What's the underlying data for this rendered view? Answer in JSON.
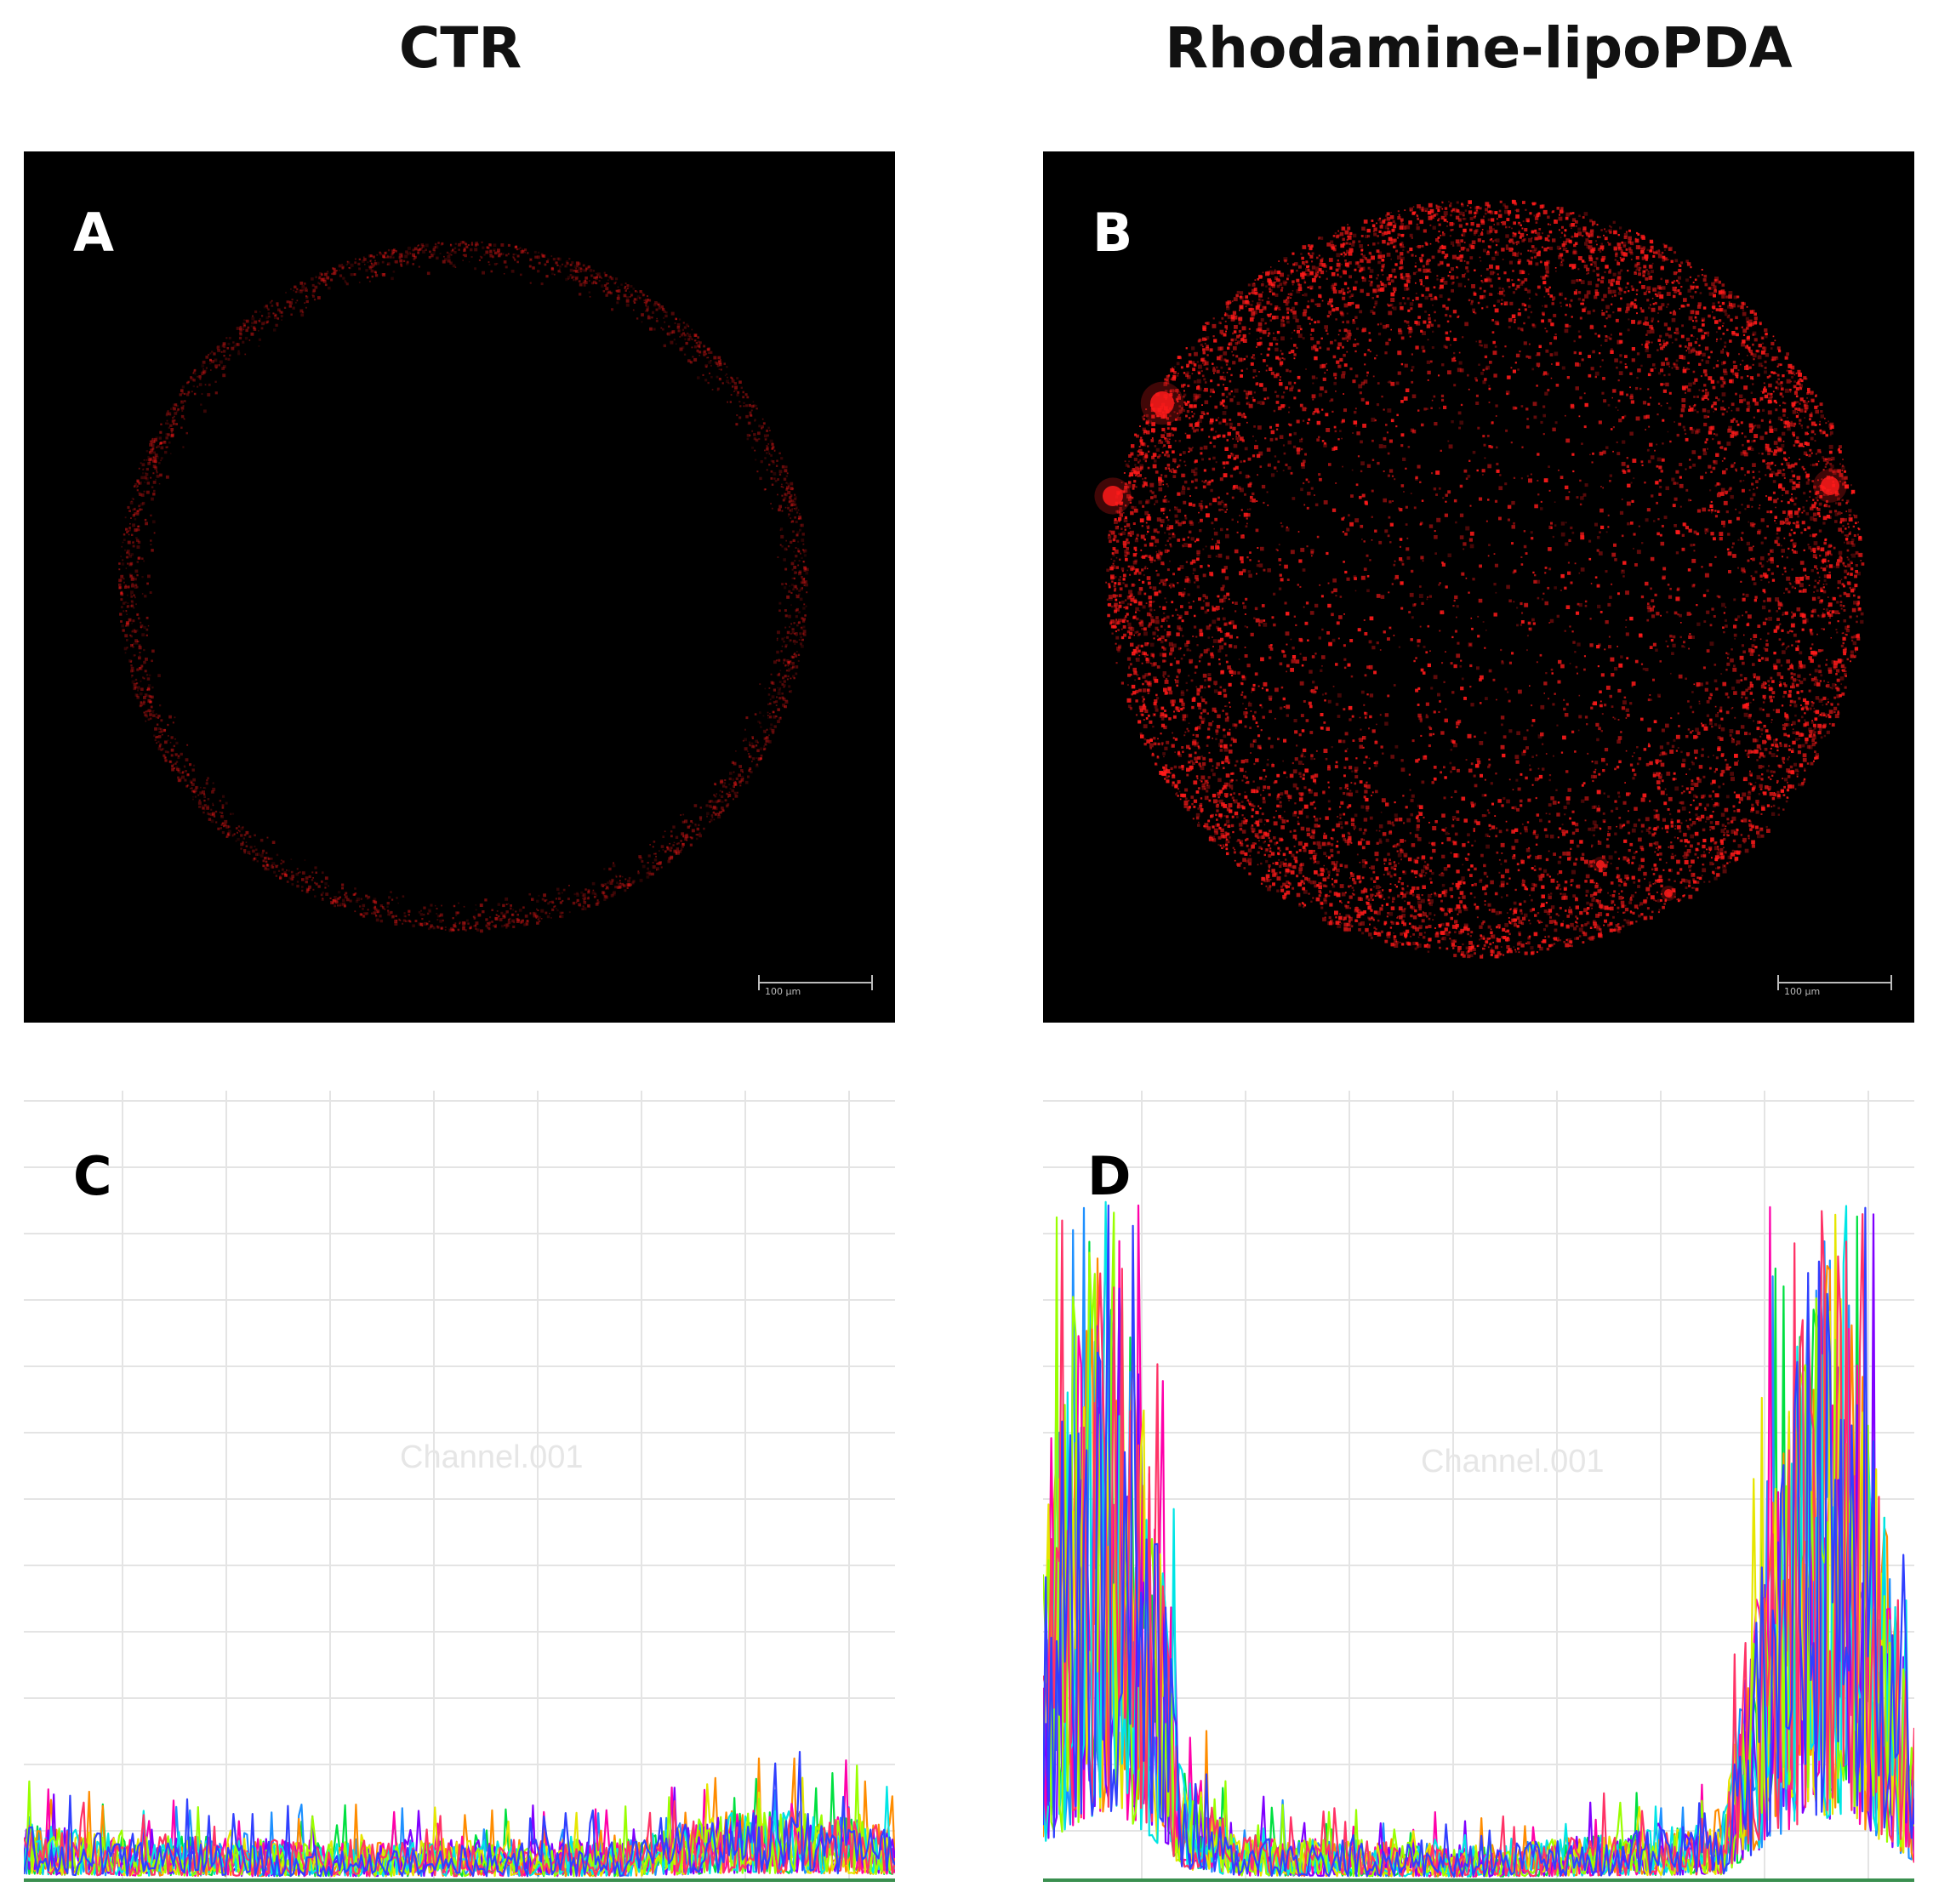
{
  "figure": {
    "columns": [
      {
        "title": "CTR"
      },
      {
        "title": "Rhodamine-lipoPDA"
      }
    ],
    "panels": [
      {
        "letter": "A",
        "kind": "micrograph",
        "scalebar_label": "100 µm"
      },
      {
        "letter": "B",
        "kind": "micrograph",
        "scalebar_label": "100 µm"
      },
      {
        "letter": "C",
        "kind": "intensity-profile",
        "watermark": "Channel.001"
      },
      {
        "letter": "D",
        "kind": "intensity-profile",
        "watermark": "Channel.001"
      }
    ]
  },
  "colors": {
    "fluorescence": "#ff1a1a",
    "background_micrograph": "#000000",
    "grid": "#e4e4e4",
    "series_palette": [
      "#00e040",
      "#1e90ff",
      "#ff8c00",
      "#ff00aa",
      "#8000ff",
      "#e6e600",
      "#00e5e5",
      "#99ff00",
      "#ff3366",
      "#3040ff"
    ]
  },
  "chart_data": [
    {
      "panel": "C",
      "type": "line",
      "title": "",
      "xlabel": "",
      "ylabel": "",
      "grid": true,
      "x_range": [
        0,
        1
      ],
      "ylim": [
        0,
        1
      ],
      "series_count": 10,
      "profile": [
        {
          "x": 0.0,
          "level": 0.05
        },
        {
          "x": 0.1,
          "level": 0.04
        },
        {
          "x": 0.3,
          "level": 0.035
        },
        {
          "x": 0.5,
          "level": 0.035
        },
        {
          "x": 0.7,
          "level": 0.035
        },
        {
          "x": 0.8,
          "level": 0.06
        },
        {
          "x": 0.9,
          "level": 0.06
        },
        {
          "x": 1.0,
          "level": 0.05
        }
      ],
      "max_peak": 0.17
    },
    {
      "panel": "D",
      "type": "line",
      "title": "",
      "xlabel": "",
      "ylabel": "",
      "grid": true,
      "x_range": [
        0,
        1
      ],
      "ylim": [
        0,
        1
      ],
      "series_count": 10,
      "profile": [
        {
          "x": 0.0,
          "level": 0.3
        },
        {
          "x": 0.03,
          "level": 0.45
        },
        {
          "x": 0.08,
          "level": 0.6
        },
        {
          "x": 0.12,
          "level": 0.4
        },
        {
          "x": 0.16,
          "level": 0.1
        },
        {
          "x": 0.22,
          "level": 0.04
        },
        {
          "x": 0.5,
          "level": 0.03
        },
        {
          "x": 0.78,
          "level": 0.05
        },
        {
          "x": 0.84,
          "level": 0.35
        },
        {
          "x": 0.88,
          "level": 0.55
        },
        {
          "x": 0.93,
          "level": 0.5
        },
        {
          "x": 0.97,
          "level": 0.3
        },
        {
          "x": 1.0,
          "level": 0.15
        }
      ],
      "max_peak": 0.88
    }
  ]
}
